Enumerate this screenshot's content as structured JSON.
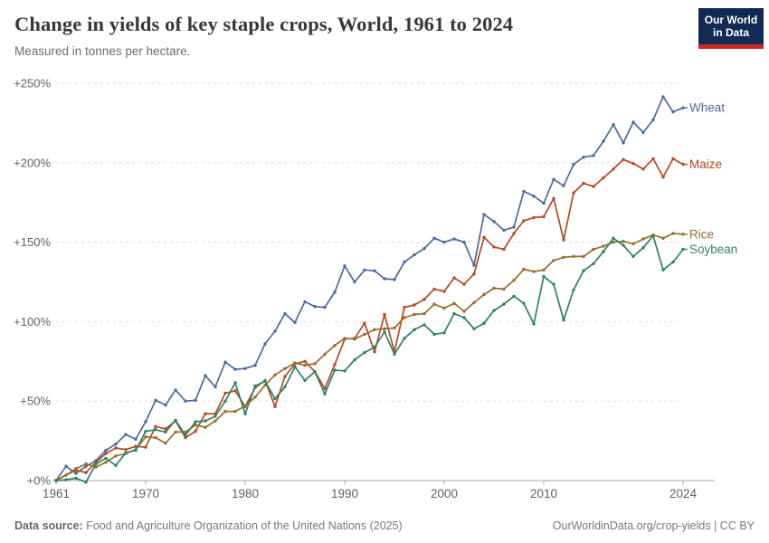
{
  "header": {
    "title": "Change in yields of key staple crops, World, 1961 to 2024",
    "subtitle": "Measured in tonnes per hectare.",
    "logo_line1": "Our World",
    "logo_line2": "in Data"
  },
  "footer": {
    "source_label": "Data source:",
    "source_text": " Food and Agriculture Organization of the United Nations (2025)",
    "link_text": "OurWorldinData.org/crop-yields | CC BY"
  },
  "colors": {
    "grid": "#DBDBDB",
    "axis": "#A5A5A5",
    "tick_text": "#616161",
    "logo_background": "#122B54",
    "logo_stripe": "#CB2B24"
  },
  "chart_data": {
    "type": "line",
    "title": "Change in yields of key staple crops, World, 1961 to 2024",
    "subtitle": "Measured in tonnes per hectare.",
    "xlabel": "",
    "ylabel": "",
    "unit": "percent change since 1961",
    "grid": "horizontal-dashed",
    "legend_position": "right-end-of-line",
    "ylim": [
      0,
      250
    ],
    "y_ticks": [
      0,
      50,
      100,
      150,
      200,
      250
    ],
    "y_tick_labels": [
      "+0%",
      "+50%",
      "+100%",
      "+150%",
      "+200%",
      "+250%"
    ],
    "x_ticks": [
      1961,
      1970,
      1980,
      1990,
      2000,
      2010,
      2024
    ],
    "x": [
      1961,
      1962,
      1963,
      1964,
      1965,
      1966,
      1967,
      1968,
      1969,
      1970,
      1971,
      1972,
      1973,
      1974,
      1975,
      1976,
      1977,
      1978,
      1979,
      1980,
      1981,
      1982,
      1983,
      1984,
      1985,
      1986,
      1987,
      1988,
      1989,
      1990,
      1991,
      1992,
      1993,
      1994,
      1995,
      1996,
      1997,
      1998,
      1999,
      2000,
      2001,
      2002,
      2003,
      2004,
      2005,
      2006,
      2007,
      2008,
      2009,
      2010,
      2011,
      2012,
      2013,
      2014,
      2015,
      2016,
      2017,
      2018,
      2019,
      2020,
      2021,
      2022,
      2023,
      2024
    ],
    "series": [
      {
        "name": "Wheat",
        "color": "#4C6A9C",
        "values": [
          0,
          9,
          4.5,
          9,
          12.5,
          19,
          23,
          29,
          26,
          37,
          50.5,
          47.5,
          57,
          50,
          50.5,
          66,
          59,
          74.5,
          70,
          70.5,
          72.5,
          86,
          94,
          105,
          99.5,
          112.5,
          109.5,
          109,
          118.5,
          135,
          125,
          132.5,
          132,
          127,
          126.5,
          137.5,
          142,
          146,
          152.5,
          150,
          152,
          150,
          135.5,
          167.5,
          163,
          157.5,
          159.5,
          182,
          179,
          174.5,
          189.5,
          185.5,
          199,
          203.5,
          204.5,
          213.5,
          224,
          212.5,
          225.5,
          219,
          227,
          241.5,
          232,
          234.5
        ]
      },
      {
        "name": "Maize",
        "color": "#B5491F",
        "values": [
          0,
          3.5,
          6.5,
          5,
          11.5,
          17,
          20.5,
          19.5,
          21.5,
          21,
          34,
          32.5,
          37.5,
          27,
          31,
          42,
          42,
          55,
          56.5,
          46.5,
          58.5,
          63,
          46.5,
          65.5,
          73.5,
          75,
          68.5,
          58,
          73,
          89,
          89.5,
          99,
          81,
          104.5,
          81,
          109,
          110.5,
          114,
          120.5,
          119,
          127.5,
          123.5,
          130,
          153,
          147,
          145.5,
          155.5,
          163.5,
          165.5,
          166,
          177.5,
          151.5,
          181,
          187,
          185,
          190.5,
          196,
          202,
          199.5,
          196,
          202.5,
          191,
          202.5,
          199
        ]
      },
      {
        "name": "Rice",
        "color": "#996D2F",
        "values": [
          0,
          3.5,
          7.5,
          10.5,
          8.5,
          11.5,
          15.5,
          17,
          19.5,
          27.5,
          27,
          23.5,
          30.5,
          30.5,
          35,
          33.5,
          37.5,
          43.5,
          43.5,
          47,
          52.5,
          60,
          66.5,
          70.5,
          74,
          72.5,
          73.5,
          79.5,
          85,
          89.5,
          89,
          92,
          95,
          95.5,
          96,
          102.5,
          104.5,
          105,
          111,
          108.5,
          111.5,
          106.5,
          112,
          117,
          121,
          120.5,
          126,
          133,
          131.5,
          132.5,
          138.5,
          140.5,
          141,
          141,
          145.5,
          147.5,
          150,
          150.5,
          149,
          152,
          154.5,
          152.5,
          155.5,
          155
        ]
      },
      {
        "name": "Soybean",
        "color": "#2C8465",
        "values": [
          0,
          0.5,
          1.5,
          -1,
          10.5,
          14,
          9.5,
          17.5,
          19,
          31,
          32,
          30.5,
          38,
          28.5,
          37,
          37.5,
          40.5,
          50,
          61.5,
          42,
          59.5,
          62.5,
          51.5,
          59,
          71.5,
          63,
          68.5,
          54.5,
          69.5,
          69,
          76,
          80.5,
          84,
          93.5,
          79.5,
          89.5,
          95,
          98,
          92,
          93,
          105,
          102.5,
          95.5,
          99,
          107,
          111,
          116,
          111.5,
          98.5,
          128.5,
          123.5,
          101,
          120,
          132,
          136.5,
          144,
          152.5,
          148,
          141,
          146.5,
          154,
          132.5,
          137.5,
          145.5
        ]
      }
    ]
  }
}
